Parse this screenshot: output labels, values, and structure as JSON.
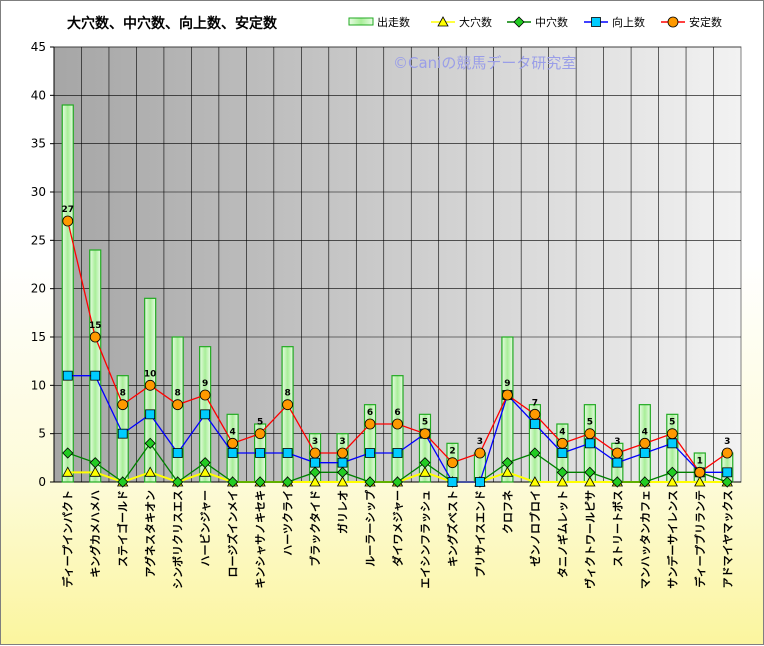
{
  "chart_data": {
    "type": "bar",
    "title": "大穴数、中穴数、向上数、安定数",
    "watermark": "©Caniの競馬データ研究室",
    "ylim": [
      0,
      45
    ],
    "yticks": [
      0,
      5,
      10,
      15,
      20,
      25,
      30,
      35,
      40,
      45
    ],
    "grid": true,
    "legend_position": "top-right",
    "categories": [
      "ディープインパクト",
      "キングカメハメハ",
      "ステイゴールド",
      "アグネスタキオン",
      "シンボリクリスエス",
      "ハービンジャー",
      "ロージズインメイ",
      "キンシャサノキセキ",
      "ハーツクライ",
      "ブラックタイド",
      "ガリレオ",
      "ルーラーシップ",
      "ダイワメジャー",
      "エイシンフラッシュ",
      "キングズベスト",
      "プリサイスエンド",
      "クロフネ",
      "ゼンノロブロイ",
      "タニノギムレット",
      "ヴィクトワールピサ",
      "ストリートボス",
      "マンハッタンカフェ",
      "サンデーサイレンス",
      "ディープブリランテ",
      "アドマイヤマックス"
    ],
    "series": [
      {
        "name": "出走数",
        "kind": "bar",
        "color": "#22aa22",
        "fill": "#b8f0b0",
        "values": [
          39,
          24,
          11,
          19,
          15,
          14,
          7,
          6,
          14,
          5,
          5,
          8,
          11,
          7,
          4,
          3,
          15,
          8,
          6,
          8,
          4,
          8,
          7,
          3,
          3
        ]
      },
      {
        "name": "大穴数",
        "kind": "line",
        "color": "#ffff00",
        "marker": "triangle",
        "values": [
          1,
          1,
          0,
          1,
          0,
          1,
          0,
          0,
          0,
          0,
          0,
          0,
          0,
          1,
          0,
          0,
          1,
          0,
          0,
          0,
          0,
          0,
          0,
          0,
          0
        ]
      },
      {
        "name": "中穴数",
        "kind": "line",
        "color": "#008000",
        "marker": "diamond",
        "values": [
          3,
          2,
          0,
          4,
          0,
          2,
          0,
          0,
          0,
          1,
          1,
          0,
          0,
          2,
          0,
          0,
          2,
          3,
          1,
          1,
          0,
          0,
          1,
          1,
          0
        ]
      },
      {
        "name": "向上数",
        "kind": "line",
        "color": "#0000ff",
        "marker": "square",
        "values": [
          11,
          11,
          5,
          7,
          3,
          7,
          3,
          3,
          3,
          2,
          2,
          3,
          3,
          5,
          0,
          0,
          9,
          6,
          3,
          4,
          2,
          3,
          4,
          1,
          1
        ]
      },
      {
        "name": "安定数",
        "kind": "line",
        "color": "#ff0000",
        "marker": "circle",
        "values": [
          27,
          15,
          8,
          10,
          8,
          9,
          4,
          5,
          8,
          3,
          3,
          6,
          6,
          5,
          2,
          3,
          9,
          7,
          4,
          5,
          3,
          4,
          5,
          1,
          3
        ]
      }
    ],
    "data_label_series": "安定数"
  }
}
